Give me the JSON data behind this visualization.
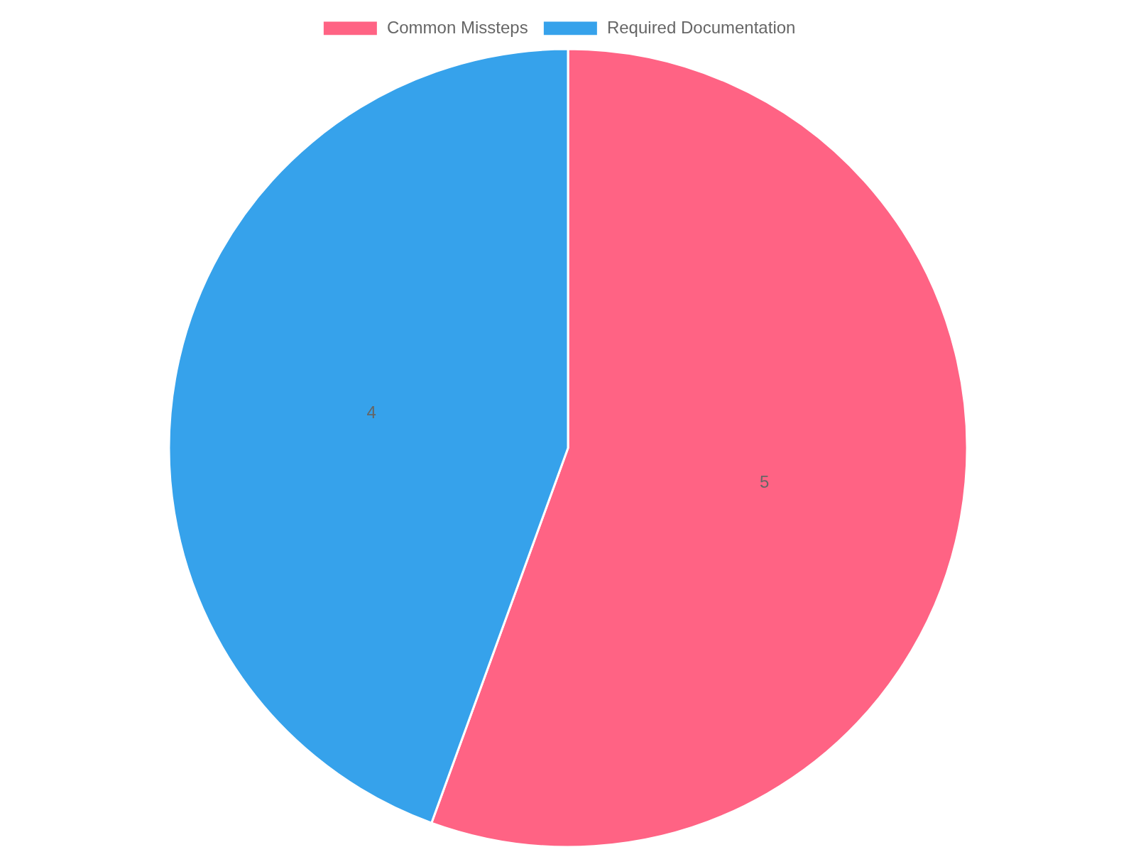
{
  "chart_data": {
    "type": "pie",
    "categories": [
      "Common Missteps",
      "Required Documentation"
    ],
    "values": [
      5,
      4
    ],
    "colors": [
      "#ff6384",
      "#36a2eb"
    ],
    "legend": "top",
    "data_labels": true
  }
}
